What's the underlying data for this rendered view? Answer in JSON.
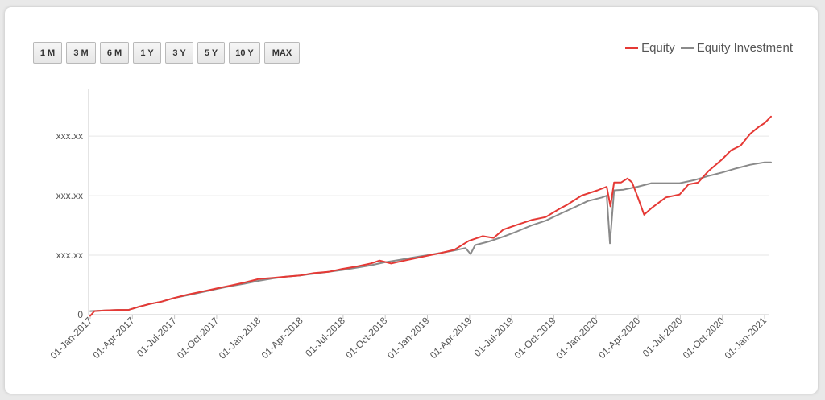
{
  "range_buttons": [
    "1 M",
    "3 M",
    "6 M",
    "1 Y",
    "3 Y",
    "5 Y",
    "10 Y",
    "MAX"
  ],
  "colors": {
    "equity": "#e53935",
    "investment": "#8a8a8a",
    "grid": "#e6e6e6",
    "axis": "#c8c8c8"
  },
  "chart_data": {
    "type": "line",
    "title": "",
    "xlabel": "",
    "ylabel": "",
    "x_ticks": [
      "01-Jan-2017",
      "01-Apr-2017",
      "01-Jul-2017",
      "01-Oct-2017",
      "01-Jan-2018",
      "01-Apr-2018",
      "01-Jul-2018",
      "01-Oct-2018",
      "01-Jan-2019",
      "01-Apr-2019",
      "01-Jul-2019",
      "01-Oct-2019",
      "01-Jan-2020",
      "01-Apr-2020",
      "01-Jul-2020",
      "01-Oct-2020",
      "01-Jan-2021"
    ],
    "y_ticks": [
      "0",
      "xxx.xx",
      "xxx.xx",
      "xxx.xx"
    ],
    "y_values_masked": true,
    "ylim": [
      0,
      3.8
    ],
    "grid": true,
    "legend_position": "top-right",
    "series": [
      {
        "name": "Equity",
        "key": "equity",
        "values": [
          [
            "2017-01-01",
            -0.02
          ],
          [
            "2017-01-10",
            0.06
          ],
          [
            "2017-02-01",
            0.07
          ],
          [
            "2017-03-01",
            0.08
          ],
          [
            "2017-03-25",
            0.08
          ],
          [
            "2017-04-15",
            0.13
          ],
          [
            "2017-05-10",
            0.18
          ],
          [
            "2017-06-05",
            0.22
          ],
          [
            "2017-07-01",
            0.28
          ],
          [
            "2017-08-01",
            0.34
          ],
          [
            "2017-09-01",
            0.39
          ],
          [
            "2017-10-01",
            0.44
          ],
          [
            "2017-11-01",
            0.49
          ],
          [
            "2017-12-01",
            0.54
          ],
          [
            "2018-01-01",
            0.6
          ],
          [
            "2018-02-01",
            0.62
          ],
          [
            "2018-03-01",
            0.64
          ],
          [
            "2018-04-01",
            0.66
          ],
          [
            "2018-05-01",
            0.7
          ],
          [
            "2018-06-01",
            0.72
          ],
          [
            "2018-07-01",
            0.77
          ],
          [
            "2018-08-01",
            0.81
          ],
          [
            "2018-09-01",
            0.86
          ],
          [
            "2018-09-20",
            0.91
          ],
          [
            "2018-10-15",
            0.86
          ],
          [
            "2018-11-01",
            0.89
          ],
          [
            "2018-12-01",
            0.94
          ],
          [
            "2019-01-01",
            0.99
          ],
          [
            "2019-02-01",
            1.04
          ],
          [
            "2019-03-01",
            1.09
          ],
          [
            "2019-04-01",
            1.24
          ],
          [
            "2019-05-01",
            1.32
          ],
          [
            "2019-05-25",
            1.29
          ],
          [
            "2019-06-15",
            1.43
          ],
          [
            "2019-07-15",
            1.51
          ],
          [
            "2019-08-15",
            1.59
          ],
          [
            "2019-09-15",
            1.64
          ],
          [
            "2019-10-15",
            1.78
          ],
          [
            "2019-11-01",
            1.85
          ],
          [
            "2019-12-01",
            2.0
          ],
          [
            "2020-01-05",
            2.09
          ],
          [
            "2020-01-25",
            2.15
          ],
          [
            "2020-02-02",
            1.82
          ],
          [
            "2020-02-10",
            2.22
          ],
          [
            "2020-02-25",
            2.22
          ],
          [
            "2020-03-10",
            2.29
          ],
          [
            "2020-03-20",
            2.22
          ],
          [
            "2020-04-01",
            1.98
          ],
          [
            "2020-04-15",
            1.68
          ],
          [
            "2020-05-01",
            1.79
          ],
          [
            "2020-06-01",
            1.97
          ],
          [
            "2020-07-01",
            2.02
          ],
          [
            "2020-07-20",
            2.19
          ],
          [
            "2020-08-10",
            2.22
          ],
          [
            "2020-09-01",
            2.41
          ],
          [
            "2020-10-01",
            2.61
          ],
          [
            "2020-10-20",
            2.76
          ],
          [
            "2020-11-10",
            2.84
          ],
          [
            "2020-12-01",
            3.04
          ],
          [
            "2020-12-20",
            3.16
          ],
          [
            "2021-01-01",
            3.22
          ],
          [
            "2021-01-15",
            3.33
          ]
        ]
      },
      {
        "name": "Equity Investment",
        "key": "investment",
        "values": [
          [
            "2017-01-01",
            0.06
          ],
          [
            "2017-02-01",
            0.07
          ],
          [
            "2017-03-01",
            0.08
          ],
          [
            "2017-03-25",
            0.08
          ],
          [
            "2017-04-15",
            0.13
          ],
          [
            "2017-05-10",
            0.18
          ],
          [
            "2017-06-05",
            0.22
          ],
          [
            "2017-07-01",
            0.28
          ],
          [
            "2017-08-01",
            0.33
          ],
          [
            "2017-09-01",
            0.38
          ],
          [
            "2017-10-01",
            0.43
          ],
          [
            "2017-11-01",
            0.48
          ],
          [
            "2017-12-01",
            0.52
          ],
          [
            "2018-01-01",
            0.57
          ],
          [
            "2018-02-01",
            0.61
          ],
          [
            "2018-03-01",
            0.64
          ],
          [
            "2018-04-01",
            0.66
          ],
          [
            "2018-05-01",
            0.69
          ],
          [
            "2018-06-01",
            0.72
          ],
          [
            "2018-07-01",
            0.75
          ],
          [
            "2018-08-01",
            0.79
          ],
          [
            "2018-09-01",
            0.83
          ],
          [
            "2018-10-01",
            0.88
          ],
          [
            "2018-11-01",
            0.92
          ],
          [
            "2018-12-01",
            0.96
          ],
          [
            "2019-01-01",
            1.0
          ],
          [
            "2019-02-01",
            1.04
          ],
          [
            "2019-03-01",
            1.08
          ],
          [
            "2019-03-25",
            1.12
          ],
          [
            "2019-04-05",
            1.02
          ],
          [
            "2019-04-15",
            1.17
          ],
          [
            "2019-05-15",
            1.23
          ],
          [
            "2019-06-15",
            1.31
          ],
          [
            "2019-07-15",
            1.4
          ],
          [
            "2019-08-15",
            1.5
          ],
          [
            "2019-09-15",
            1.58
          ],
          [
            "2019-10-15",
            1.69
          ],
          [
            "2019-11-15",
            1.8
          ],
          [
            "2019-12-15",
            1.91
          ],
          [
            "2020-01-15",
            1.97
          ],
          [
            "2020-01-25",
            2.0
          ],
          [
            "2020-02-01",
            1.2
          ],
          [
            "2020-02-10",
            2.09
          ],
          [
            "2020-03-01",
            2.1
          ],
          [
            "2020-04-01",
            2.15
          ],
          [
            "2020-05-01",
            2.21
          ],
          [
            "2020-06-01",
            2.21
          ],
          [
            "2020-07-01",
            2.21
          ],
          [
            "2020-08-01",
            2.26
          ],
          [
            "2020-09-01",
            2.33
          ],
          [
            "2020-10-01",
            2.39
          ],
          [
            "2020-11-01",
            2.46
          ],
          [
            "2020-12-01",
            2.52
          ],
          [
            "2021-01-01",
            2.56
          ],
          [
            "2021-01-15",
            2.56
          ]
        ]
      }
    ]
  }
}
